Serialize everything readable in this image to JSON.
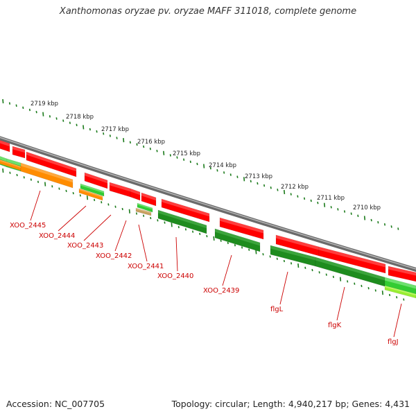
{
  "title": "Xanthomonas oryzae pv. oryzae MAFF 311018, complete genome",
  "footer": {
    "accession": "Accession: NC_007705",
    "summary": "Topology: circular; Length: 4,940,217 bp; Genes: 4,431"
  },
  "colors": {
    "forward_gene": "#ff0000",
    "reverse_gene": "#1e8c1e",
    "orange_gene": "#ff8c00",
    "light_green_gene": "#33cc33",
    "yellow_green_gene": "#99ee33",
    "tan_gene": "#c8a060",
    "backbone": "#808080",
    "ticks": "#1a7a1a",
    "label": "#cc0000"
  },
  "scale_labels": [
    "2719 kbp",
    "2718 kbp",
    "2717 kbp",
    "2716 kbp",
    "2715 kbp",
    "2714 kbp",
    "2713 kbp",
    "2712 kbp",
    "2711 kbp",
    "2710 kbp"
  ],
  "gene_labels": [
    "XOO_2445",
    "XOO_2444",
    "XOO_2443",
    "XOO_2442",
    "XOO_2441",
    "XOO_2440",
    "XOO_2439",
    "flgL",
    "flgK",
    "flgJ"
  ]
}
